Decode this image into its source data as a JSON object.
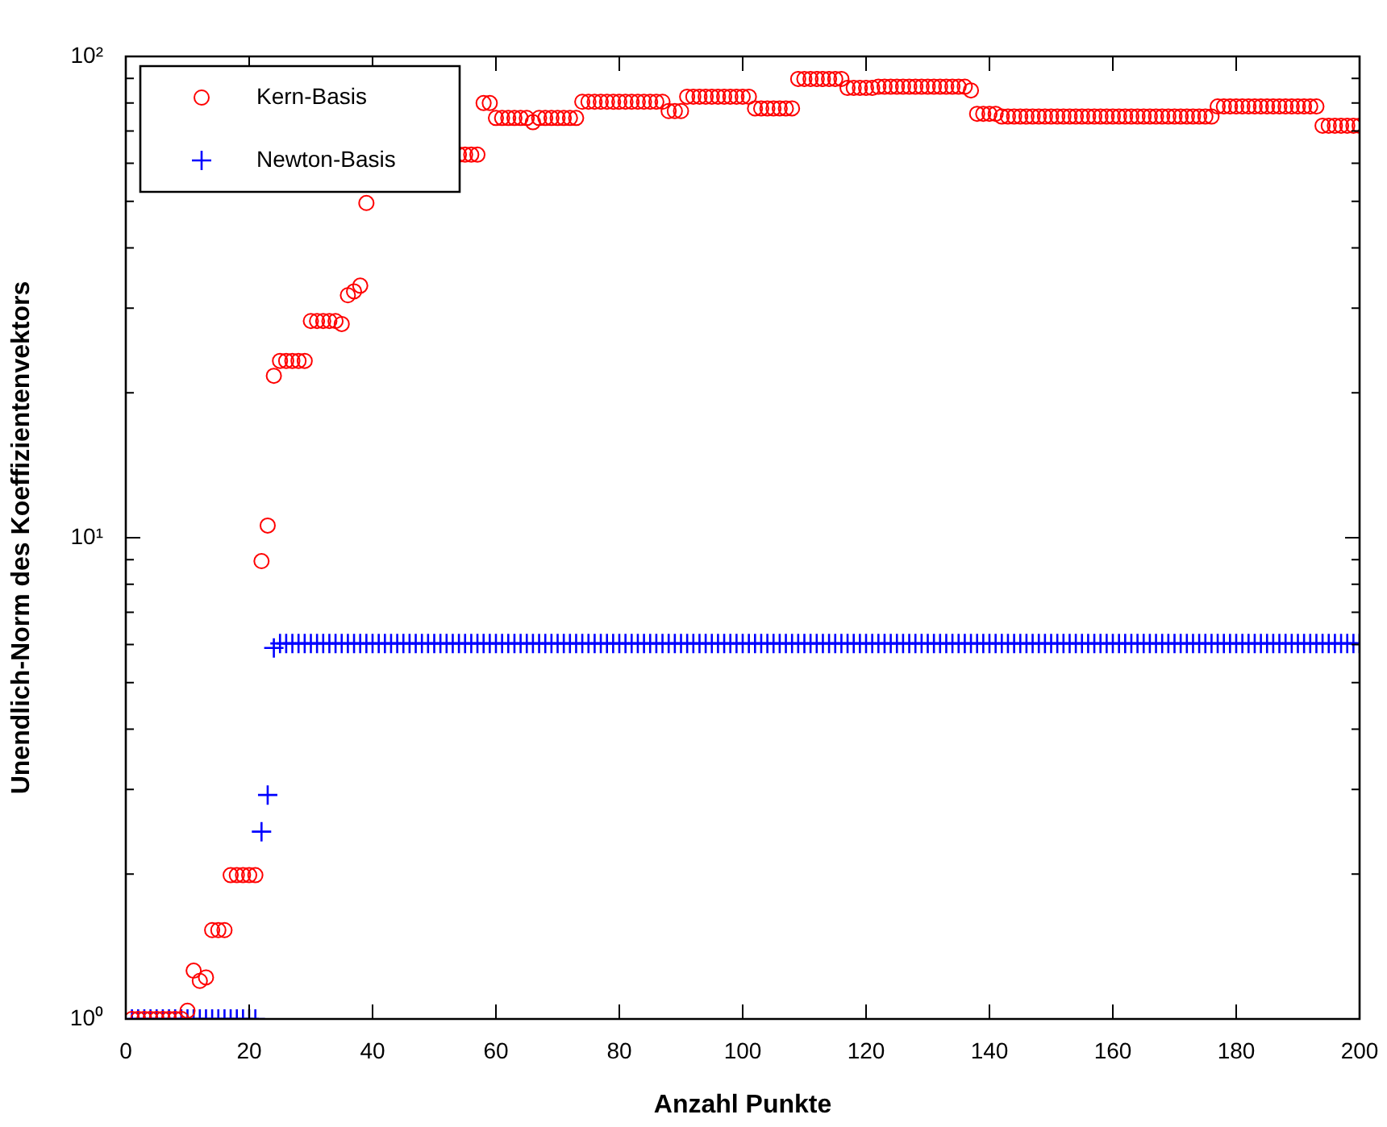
{
  "chart_data": {
    "type": "scatter",
    "xlabel": "Anzahl Punkte",
    "ylabel": "Unendlich-Norm des Koeffizientenvektors",
    "log": "y",
    "legend": "top left",
    "grid": false,
    "xlim": [
      0,
      200
    ],
    "xticks": [
      0,
      20,
      40,
      60,
      80,
      100,
      120,
      140,
      160,
      180,
      200
    ],
    "ylim": [
      1,
      100
    ],
    "yticks": [
      {
        "value": 1,
        "label": "10⁰"
      },
      {
        "value": 2,
        "label": null
      },
      {
        "value": 3,
        "label": null
      },
      {
        "value": 4,
        "label": null
      },
      {
        "value": 5,
        "label": null
      },
      {
        "value": 6,
        "label": null
      },
      {
        "value": 7,
        "label": null
      },
      {
        "value": 8,
        "label": null
      },
      {
        "value": 9,
        "label": null
      },
      {
        "value": 10,
        "label": "10¹"
      },
      {
        "value": 20,
        "label": null
      },
      {
        "value": 30,
        "label": null
      },
      {
        "value": 40,
        "label": null
      },
      {
        "value": 50,
        "label": null
      },
      {
        "value": 60,
        "label": null
      },
      {
        "value": 70,
        "label": null
      },
      {
        "value": 80,
        "label": null
      },
      {
        "value": 90,
        "label": null
      },
      {
        "value": 100,
        "label": "10²"
      }
    ],
    "x": [
      1,
      2,
      3,
      4,
      5,
      6,
      7,
      8,
      9,
      10,
      11,
      12,
      13,
      14,
      15,
      16,
      17,
      18,
      19,
      20,
      21,
      22,
      23,
      24,
      25,
      26,
      27,
      28,
      29,
      30,
      31,
      32,
      33,
      34,
      35,
      36,
      37,
      38,
      39,
      40,
      41,
      42,
      43,
      44,
      45,
      46,
      47,
      48,
      49,
      50,
      51,
      52,
      53,
      54,
      55,
      56,
      57,
      58,
      59,
      60,
      61,
      62,
      63,
      64,
      65,
      66,
      67,
      68,
      69,
      70,
      71,
      72,
      73,
      74,
      75,
      76,
      77,
      78,
      79,
      80,
      81,
      82,
      83,
      84,
      85,
      86,
      87,
      88,
      89,
      90,
      91,
      92,
      93,
      94,
      95,
      96,
      97,
      98,
      99,
      100,
      101,
      102,
      103,
      104,
      105,
      106,
      107,
      108,
      109,
      110,
      111,
      112,
      113,
      114,
      115,
      116,
      117,
      118,
      119,
      120,
      121,
      122,
      123,
      124,
      125,
      126,
      127,
      128,
      129,
      130,
      131,
      132,
      133,
      134,
      135,
      136,
      137,
      138,
      139,
      140,
      141,
      142,
      143,
      144,
      145,
      146,
      147,
      148,
      149,
      150,
      151,
      152,
      153,
      154,
      155,
      156,
      157,
      158,
      159,
      160,
      161,
      162,
      163,
      164,
      165,
      166,
      167,
      168,
      169,
      170,
      171,
      172,
      173,
      174,
      175,
      176,
      177,
      178,
      179,
      180,
      181,
      182,
      183,
      184,
      185,
      186,
      187,
      188,
      189,
      190,
      191,
      192,
      193,
      194,
      195,
      196,
      197,
      198,
      199,
      200
    ],
    "series": [
      {
        "name": "Kern-Basis",
        "color": "#ff0000",
        "marker": "circle",
        "values": [
          1,
          1,
          1,
          1,
          1,
          1,
          1,
          1,
          1,
          1.04,
          1.26,
          1.2,
          1.22,
          1.53,
          1.53,
          1.53,
          1.99,
          1.99,
          1.99,
          1.99,
          1.99,
          8.94,
          10.6,
          21.7,
          23.3,
          23.3,
          23.3,
          23.3,
          23.3,
          28.2,
          28.2,
          28.2,
          28.2,
          28.2,
          27.8,
          31.9,
          32.5,
          33.4,
          49.6,
          null,
          null,
          null,
          null,
          null,
          null,
          null,
          null,
          null,
          null,
          null,
          null,
          null,
          null,
          62.5,
          62.5,
          62.5,
          62.5,
          80,
          80,
          74.5,
          74.5,
          74.5,
          74.5,
          74.5,
          74.5,
          73,
          74.5,
          74.5,
          74.5,
          74.5,
          74.5,
          74.5,
          74.5,
          80.5,
          80.5,
          80.5,
          80.5,
          80.5,
          80.5,
          80.5,
          80.5,
          80.5,
          80.5,
          80.5,
          80.5,
          80.5,
          80.5,
          77,
          77,
          77,
          82.5,
          82.5,
          82.5,
          82.5,
          82.5,
          82.5,
          82.5,
          82.5,
          82.5,
          82.5,
          82.5,
          78,
          78,
          78,
          78,
          78,
          78,
          78,
          89.8,
          89.8,
          89.8,
          89.8,
          89.8,
          89.8,
          89.8,
          89.8,
          86,
          86,
          86,
          86,
          86,
          86.5,
          86.5,
          86.5,
          86.5,
          86.5,
          86.5,
          86.5,
          86.5,
          86.5,
          86.5,
          86.5,
          86.5,
          86.5,
          86.5,
          86.5,
          85,
          76,
          76,
          76,
          76,
          75,
          75,
          75,
          75,
          75,
          75,
          75,
          75,
          75,
          75,
          75,
          75,
          75,
          75,
          75,
          75,
          75,
          75,
          75,
          75,
          75,
          75,
          75,
          75,
          75,
          75,
          75,
          75,
          75,
          75,
          75,
          75,
          75,
          75,
          75,
          78.7,
          78.7,
          78.7,
          78.7,
          78.7,
          78.7,
          78.7,
          78.7,
          78.7,
          78.7,
          78.7,
          78.7,
          78.7,
          78.7,
          78.7,
          78.7,
          78.7,
          71.8,
          71.8,
          71.8,
          71.8,
          71.8,
          71.8,
          71.8
        ]
      },
      {
        "name": "Newton-Basis",
        "color": "#0000ff",
        "marker": "cross",
        "values": [
          1,
          1,
          1,
          1,
          1,
          1,
          1,
          1,
          1,
          1,
          1,
          1,
          1,
          1,
          1,
          1,
          1,
          1,
          1,
          1,
          1,
          2.45,
          2.92,
          5.9,
          6.03,
          6.03,
          6.03,
          6.03,
          6.03,
          6.03,
          6.03,
          6.03,
          6.03,
          6.03,
          6.03,
          6.03,
          6.03,
          6.03,
          6.03,
          6.03,
          6.03,
          6.03,
          6.03,
          6.03,
          6.03,
          6.03,
          6.03,
          6.03,
          6.03,
          6.03,
          6.03,
          6.03,
          6.03,
          6.03,
          6.03,
          6.03,
          6.03,
          6.03,
          6.03,
          6.03,
          6.03,
          6.03,
          6.03,
          6.03,
          6.03,
          6.03,
          6.03,
          6.03,
          6.03,
          6.03,
          6.03,
          6.03,
          6.03,
          6.03,
          6.03,
          6.03,
          6.03,
          6.03,
          6.03,
          6.03,
          6.03,
          6.03,
          6.03,
          6.03,
          6.03,
          6.03,
          6.03,
          6.03,
          6.03,
          6.03,
          6.03,
          6.03,
          6.03,
          6.03,
          6.03,
          6.03,
          6.03,
          6.03,
          6.03,
          6.03,
          6.03,
          6.03,
          6.03,
          6.03,
          6.03,
          6.03,
          6.03,
          6.03,
          6.03,
          6.03,
          6.03,
          6.03,
          6.03,
          6.03,
          6.03,
          6.03,
          6.03,
          6.03,
          6.03,
          6.03,
          6.03,
          6.03,
          6.03,
          6.03,
          6.03,
          6.03,
          6.03,
          6.03,
          6.03,
          6.03,
          6.03,
          6.03,
          6.03,
          6.03,
          6.03,
          6.03,
          6.03,
          6.03,
          6.03,
          6.03,
          6.03,
          6.03,
          6.03,
          6.03,
          6.03,
          6.03,
          6.03,
          6.03,
          6.03,
          6.03,
          6.03,
          6.03,
          6.03,
          6.03,
          6.03,
          6.03,
          6.03,
          6.03,
          6.03,
          6.03,
          6.03,
          6.03,
          6.03,
          6.03,
          6.03,
          6.03,
          6.03,
          6.03,
          6.03,
          6.03,
          6.03,
          6.03,
          6.03,
          6.03,
          6.03,
          6.03,
          6.03,
          6.03,
          6.03,
          6.03,
          6.03,
          6.03,
          6.03,
          6.03,
          6.03,
          6.03,
          6.03,
          6.03,
          6.03,
          6.03,
          6.03,
          6.03,
          6.03,
          6.03,
          6.03,
          6.03,
          6.03,
          6.03,
          6.03,
          6.03
        ]
      }
    ]
  }
}
